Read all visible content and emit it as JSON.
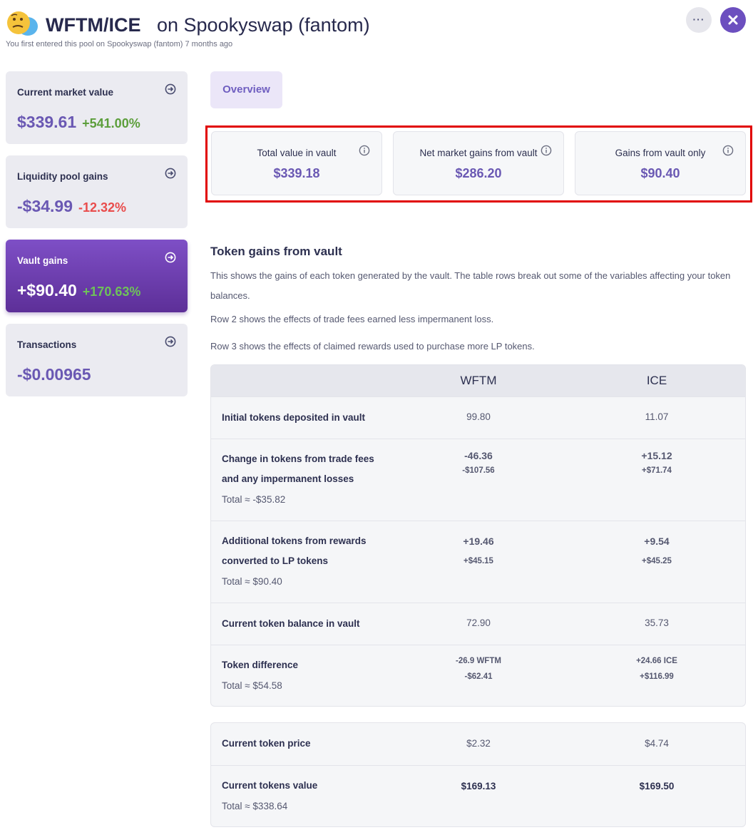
{
  "header": {
    "pair": "WFTM/ICE",
    "on_text": "on Spookyswap (fantom)",
    "subtitle": "You first entered this pool on Spookyswap (fantom) 7 months ago",
    "more_label": "···"
  },
  "sidebar": {
    "cards": [
      {
        "label": "Current market value",
        "value": "$339.61",
        "pct": "+541.00%"
      },
      {
        "label": "Liquidity pool gains",
        "value": "-$34.99",
        "pct": "-12.32%"
      },
      {
        "label": "Vault gains",
        "value": "+$90.40",
        "pct": "+170.63%"
      },
      {
        "label": "Transactions",
        "value": "-$0.00965"
      }
    ]
  },
  "tabs": {
    "overview": "Overview"
  },
  "stats": [
    {
      "label": "Total value in vault",
      "value": "$339.18"
    },
    {
      "label": "Net market gains from vault",
      "value": "$286.20"
    },
    {
      "label": "Gains from vault only",
      "value": "$90.40"
    }
  ],
  "section": {
    "title": "Token gains from vault",
    "desc1": "This shows the gains of each token generated by the vault. The table rows break out some of the variables affecting your token balances.",
    "desc2": "Row 2 shows the effects of trade fees earned less impermanent loss.",
    "desc3": "Row 3 shows the effects of claimed rewards used to purchase more LP tokens."
  },
  "table": {
    "col_a": "WFTM",
    "col_b": "ICE",
    "rows": [
      {
        "label": "Initial tokens deposited in vault",
        "a": "99.80",
        "b": "11.07"
      },
      {
        "label": "Change in tokens from trade fees and any impermanent losses",
        "total": "Total ≈ -$35.82",
        "a": "-46.36",
        "a_usd": "-$107.56",
        "b": "+15.12",
        "b_usd": "+$71.74"
      },
      {
        "label": "Additional tokens from rewards converted to LP tokens",
        "total": "Total ≈ $90.40",
        "a": "+19.46",
        "a_usd": "+$45.15",
        "b": "+9.54",
        "b_usd": "+$45.25"
      },
      {
        "label": "Current token balance in vault",
        "a": "72.90",
        "b": "35.73"
      },
      {
        "label": "Token difference",
        "total": "Total ≈ $54.58",
        "a": "-26.9 WFTM",
        "a_usd": "-$62.41",
        "b": "+24.66 ICE",
        "b_usd": "+$116.99"
      }
    ]
  },
  "price_table": {
    "rows": [
      {
        "label": "Current token price",
        "a": "$2.32",
        "b": "$4.74"
      },
      {
        "label": "Current tokens value",
        "total": "Total ≈ $338.64",
        "a": "$169.13",
        "b": "$169.50"
      }
    ]
  },
  "colors": {
    "accent": "#6c4fbf",
    "value_purple": "#6a58b3",
    "gain_green": "#5c9e3b",
    "loss_red": "#e94c4c",
    "highlight_red": "#e10000"
  },
  "icons": [
    "thinking-face-icon",
    "more-icon",
    "close-icon",
    "arrow-circle-right-icon",
    "info-icon"
  ]
}
